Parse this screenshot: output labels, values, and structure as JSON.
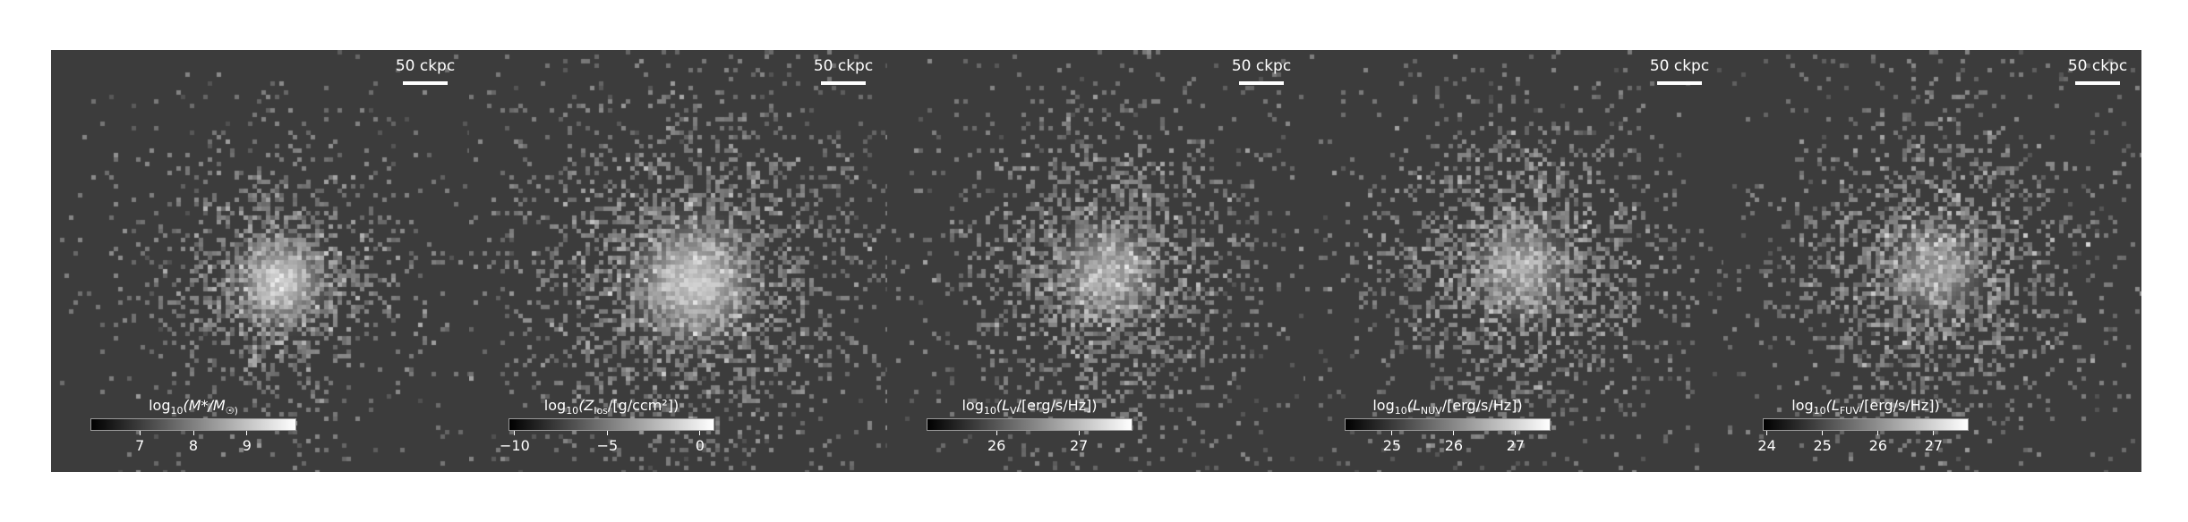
{
  "figure": {
    "panels": [
      {
        "scalebar": "50 ckpc",
        "colorbar": {
          "title_prefix": "log",
          "title_sub": "10",
          "title_body": "(M*/M",
          "title_suffix": "☉)",
          "ticks": [
            "7",
            "8",
            "9"
          ],
          "tick_positions": [
            0.24,
            0.5,
            0.76
          ]
        },
        "image": {
          "center": [
            0.54,
            0.54
          ],
          "spread": 0.14,
          "count": 1400,
          "core": 0.62,
          "noise": 140,
          "seed": 11
        }
      },
      {
        "scalebar": "50 ckpc",
        "colorbar": {
          "title_prefix": "log",
          "title_sub": "10",
          "title_body": "(Z",
          "title_body_sub": "los",
          "title_suffix": "/[g/ccm²])",
          "ticks": [
            "−10",
            "−5",
            "0"
          ],
          "tick_positions": [
            0.03,
            0.48,
            0.93
          ]
        },
        "image": {
          "center": [
            0.53,
            0.54
          ],
          "spread": 0.19,
          "count": 2400,
          "core": 0.58,
          "noise": 360,
          "seed": 23
        }
      },
      {
        "scalebar": "50 ckpc",
        "colorbar": {
          "title_prefix": "log",
          "title_sub": "10",
          "title_body": "(L",
          "title_body_sub": "V",
          "title_suffix": "/[erg/s/Hz])",
          "ticks": [
            "26",
            "27"
          ],
          "tick_positions": [
            0.34,
            0.74
          ]
        },
        "image": {
          "center": [
            0.52,
            0.52
          ],
          "spread": 0.16,
          "count": 1900,
          "core": 0.36,
          "noise": 300,
          "seed": 37
        }
      },
      {
        "scalebar": "50 ckpc",
        "colorbar": {
          "title_prefix": "log",
          "title_sub": "10",
          "title_body": "(L",
          "title_body_sub": "NUV",
          "title_suffix": "/[erg/s/Hz])",
          "ticks": [
            "25",
            "26",
            "27"
          ],
          "tick_positions": [
            0.23,
            0.53,
            0.83
          ]
        },
        "image": {
          "center": [
            0.51,
            0.51
          ],
          "spread": 0.16,
          "count": 1900,
          "core": 0.3,
          "noise": 320,
          "seed": 53
        }
      },
      {
        "scalebar": "50 ckpc",
        "colorbar": {
          "title_prefix": "log",
          "title_sub": "10",
          "title_body": "(L",
          "title_body_sub": "FUV",
          "title_suffix": "/[erg/s/Hz])",
          "ticks": [
            "24",
            "25",
            "26",
            "27"
          ],
          "tick_positions": [
            0.02,
            0.29,
            0.56,
            0.83
          ]
        },
        "image": {
          "center": [
            0.5,
            0.51
          ],
          "spread": 0.16,
          "count": 1800,
          "core": 0.28,
          "noise": 320,
          "seed": 71
        }
      }
    ]
  }
}
